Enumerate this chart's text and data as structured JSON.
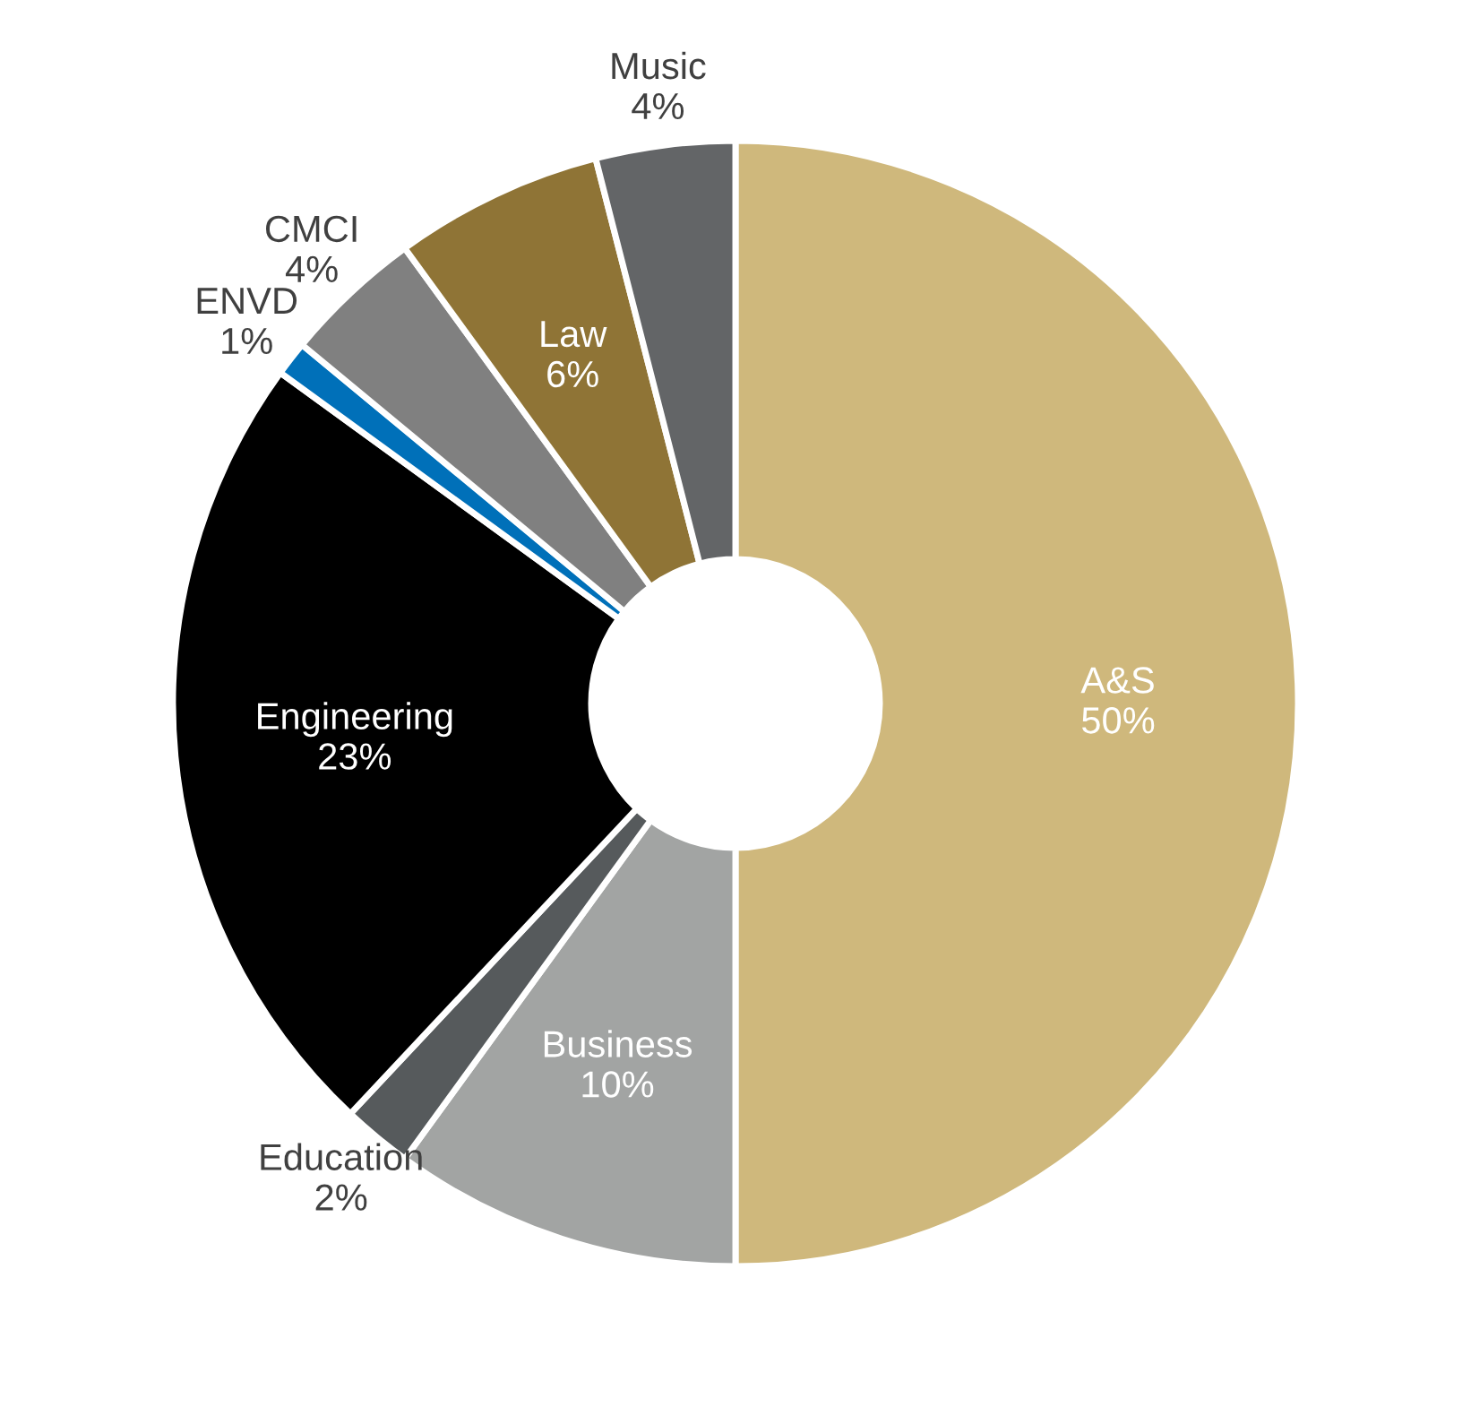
{
  "chart_data": {
    "type": "donut",
    "categories": [
      "A&S",
      "Business",
      "Education",
      "Engineering",
      "ENVD",
      "CMCI",
      "Law",
      "Music"
    ],
    "values": [
      50,
      10,
      2,
      23,
      1,
      4,
      6,
      4
    ],
    "value_labels": [
      "50%",
      "10%",
      "2%",
      "23%",
      "1%",
      "4%",
      "6%",
      "4%"
    ],
    "colors": [
      "#cfb87c",
      "#a2a4a3",
      "#565a5c",
      "#000000",
      "#0070b9",
      "#808080",
      "#8f7436",
      "#636567"
    ],
    "legend": false
  }
}
